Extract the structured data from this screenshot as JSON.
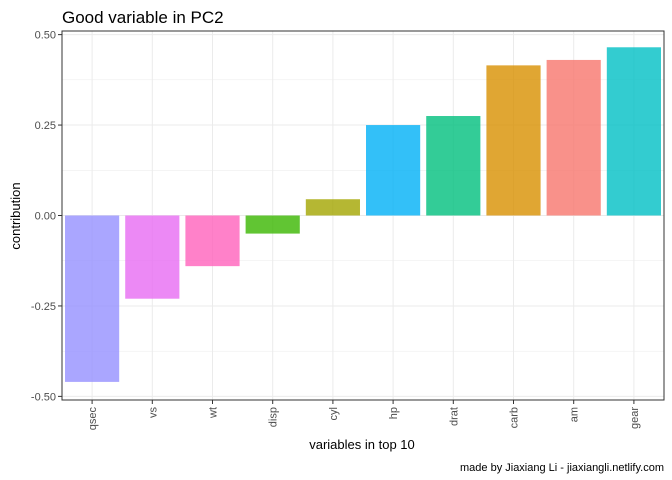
{
  "chart_data": {
    "type": "bar",
    "title": "Good variable in PC2",
    "xlabel": "variables in top 10",
    "ylabel": "contribution",
    "caption": "made by Jiaxiang Li - jiaxiangli.netlify.com",
    "categories": [
      "qsec",
      "vs",
      "wt",
      "disp",
      "cyl",
      "hp",
      "drat",
      "carb",
      "am",
      "gear"
    ],
    "values": [
      -0.46,
      -0.23,
      -0.14,
      -0.05,
      0.045,
      0.25,
      0.275,
      0.415,
      0.43,
      0.465
    ],
    "colors": [
      "#9590FF",
      "#E76BF3",
      "#FF62BC",
      "#39B600",
      "#A3A500",
      "#00B0F6",
      "#00BF7D",
      "#D89000",
      "#F8766D",
      "#00BFC4"
    ],
    "bar_opacity": 0.8,
    "ylim": [
      -0.51,
      0.51
    ],
    "yticks": [
      -0.5,
      -0.25,
      0.0,
      0.25,
      0.5
    ],
    "ytick_labels": [
      "-0.50",
      "-0.25",
      "0.00",
      "0.25",
      "0.50"
    ],
    "x_tick_rotation": "vertical",
    "grid": true,
    "legend": "none",
    "theme": "light"
  }
}
